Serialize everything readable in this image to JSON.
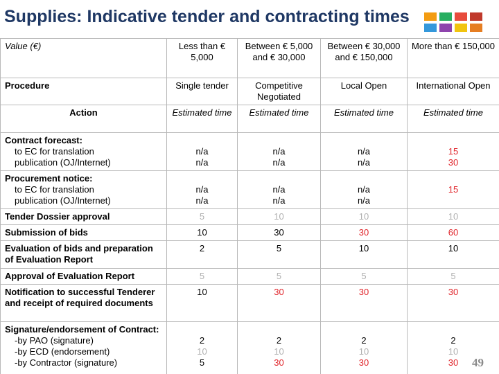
{
  "title": "Supplies: Indicative tender and contracting times",
  "table": {
    "rows": [
      [
        [
          "Value (€)"
        ],
        [
          "Less than € 5,000"
        ],
        [
          "Between € 5,000 and € 30,000"
        ],
        [
          "Between € 30,000 and € 150,000"
        ],
        [
          "More than € 150,000"
        ]
      ],
      [
        [
          "Procedure"
        ],
        [
          "Single tender"
        ],
        [
          "Competitive Negotiated"
        ],
        [
          "Local Open"
        ],
        [
          "International Open"
        ]
      ],
      [
        [
          "Action"
        ],
        [
          "Estimated time"
        ],
        [
          "Estimated time"
        ],
        [
          "Estimated time"
        ],
        [
          "Estimated time"
        ]
      ],
      [
        [
          "Contract forecast:",
          "to EC for translation",
          "publication (OJ/Internet)"
        ],
        [
          "n/a",
          "n/a"
        ],
        [
          "n/a",
          "n/a"
        ],
        [
          "n/a",
          "n/a"
        ],
        [
          "15",
          "30"
        ]
      ],
      [
        [
          "Procurement notice:",
          "to EC for translation",
          "publication (OJ/Internet)"
        ],
        [
          "n/a",
          "n/a"
        ],
        [
          "n/a",
          "n/a"
        ],
        [
          "n/a",
          "n/a"
        ],
        [
          "15"
        ]
      ],
      [
        [
          "Tender Dossier approval"
        ],
        [
          "5"
        ],
        [
          "10"
        ],
        [
          "10"
        ],
        [
          "10"
        ]
      ],
      [
        [
          "Submission of bids"
        ],
        [
          "10"
        ],
        [
          "30"
        ],
        [
          "30"
        ],
        [
          "60"
        ]
      ],
      [
        [
          "Evaluation of bids and preparation of Evaluation Report"
        ],
        [
          "2"
        ],
        [
          "5"
        ],
        [
          "10"
        ],
        [
          "10"
        ]
      ],
      [
        [
          "Approval of Evaluation Report"
        ],
        [
          "5"
        ],
        [
          "5"
        ],
        [
          "5"
        ],
        [
          "5"
        ]
      ],
      [
        [
          "Notification to successful Tenderer and receipt of required documents"
        ],
        [
          "10"
        ],
        [
          "30"
        ],
        [
          "30"
        ],
        [
          "30"
        ]
      ],
      [
        [
          "Signature/endorsement of Contract:",
          "-by PAO (signature)",
          "-by ECD (endorsement)",
          "-by Contractor (signature)"
        ],
        [
          "2",
          "10",
          "5"
        ],
        [
          "2",
          "10",
          "30"
        ],
        [
          "2",
          "10",
          "30"
        ],
        [
          "2",
          "10",
          "30"
        ]
      ]
    ]
  },
  "page_number": "49"
}
